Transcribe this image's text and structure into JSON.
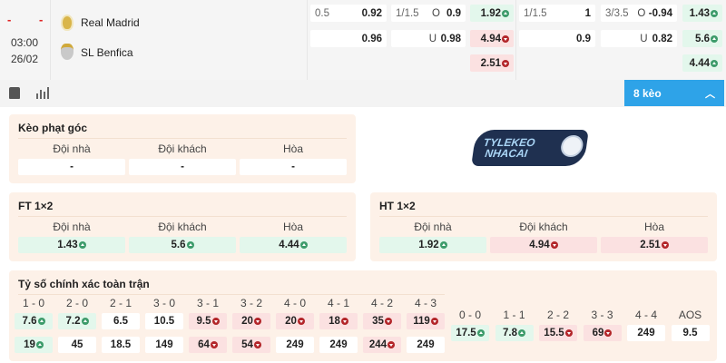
{
  "match": {
    "score_home": "-",
    "score_away": "-",
    "time": "03:00",
    "date": "26/02",
    "home": "Real Madrid",
    "away": "SL Benfica"
  },
  "odds": {
    "handicap": [
      {
        "line": "0.5",
        "value": "0.92"
      },
      {
        "line": "",
        "value": "0.96"
      }
    ],
    "over_under": [
      {
        "line": "1/1.5",
        "side": "O",
        "value": "0.9"
      },
      {
        "line": "",
        "side": "U",
        "value": "0.98"
      }
    ],
    "x12": [
      {
        "value": "1.92",
        "trend": "up"
      },
      {
        "value": "4.94",
        "trend": "down"
      },
      {
        "value": "2.51",
        "trend": "down"
      }
    ],
    "handicap_2": [
      {
        "line": "1/1.5",
        "value": "1"
      },
      {
        "line": "",
        "value": "0.9"
      }
    ],
    "over_under_2": [
      {
        "line": "3/3.5",
        "side": "O",
        "value": "-0.94"
      },
      {
        "line": "",
        "side": "U",
        "value": "0.82"
      }
    ],
    "x12_2": [
      {
        "value": "1.43",
        "trend": "up"
      },
      {
        "value": "5.6",
        "trend": "up"
      },
      {
        "value": "4.44",
        "trend": "up"
      }
    ]
  },
  "toolbar": {
    "icons": [
      "jersey-icon",
      "stats-icon"
    ],
    "more_button": "8 kèo"
  },
  "logo": {
    "text": "TYLEKEO NHACAI .VN"
  },
  "corner": {
    "title": "Kèo phạt góc",
    "columns": [
      "Đội nhà",
      "Đội khách",
      "Hòa"
    ],
    "values": [
      {
        "value": "-",
        "trend": ""
      },
      {
        "value": "-",
        "trend": ""
      },
      {
        "value": "-",
        "trend": ""
      }
    ]
  },
  "ft": {
    "title": "FT 1×2",
    "columns": [
      "Đội nhà",
      "Đội khách",
      "Hòa"
    ],
    "values": [
      {
        "value": "1.43",
        "trend": "up"
      },
      {
        "value": "5.6",
        "trend": "up"
      },
      {
        "value": "4.44",
        "trend": "up"
      }
    ]
  },
  "ht": {
    "title": "HT 1×2",
    "columns": [
      "Đội nhà",
      "Đội khách",
      "Hòa"
    ],
    "values": [
      {
        "value": "1.92",
        "trend": "up"
      },
      {
        "value": "4.94",
        "trend": "down"
      },
      {
        "value": "2.51",
        "trend": "down"
      }
    ]
  },
  "exact": {
    "title": "Tỷ số chính xác toàn trận",
    "home_scores": [
      "1 - 0",
      "2 - 0",
      "2 - 1",
      "3 - 0",
      "3 - 1",
      "3 - 2",
      "4 - 0",
      "4 - 1",
      "4 - 2",
      "4 - 3"
    ],
    "home_row": [
      {
        "value": "7.6",
        "trend": "up"
      },
      {
        "value": "7.2",
        "trend": "up"
      },
      {
        "value": "6.5",
        "trend": ""
      },
      {
        "value": "10.5",
        "trend": ""
      },
      {
        "value": "9.5",
        "trend": "down"
      },
      {
        "value": "20",
        "trend": "down"
      },
      {
        "value": "20",
        "trend": "down"
      },
      {
        "value": "18",
        "trend": "down"
      },
      {
        "value": "35",
        "trend": "down"
      },
      {
        "value": "119",
        "trend": "down"
      }
    ],
    "away_row": [
      {
        "value": "19",
        "trend": "up"
      },
      {
        "value": "45",
        "trend": ""
      },
      {
        "value": "18.5",
        "trend": ""
      },
      {
        "value": "149",
        "trend": ""
      },
      {
        "value": "64",
        "trend": "down"
      },
      {
        "value": "54",
        "trend": "down"
      },
      {
        "value": "249",
        "trend": ""
      },
      {
        "value": "249",
        "trend": ""
      },
      {
        "value": "244",
        "trend": "down"
      },
      {
        "value": "249",
        "trend": ""
      }
    ],
    "draw_scores": [
      "0 - 0",
      "1 - 1",
      "2 - 2",
      "3 - 3",
      "4 - 4",
      "AOS"
    ],
    "draw_row": [
      {
        "value": "17.5",
        "trend": "up"
      },
      {
        "value": "7.8",
        "trend": "up"
      },
      {
        "value": "15.5",
        "trend": "down"
      },
      {
        "value": "69",
        "trend": "down"
      },
      {
        "value": "249",
        "trend": ""
      },
      {
        "value": "9.5",
        "trend": ""
      }
    ]
  }
}
